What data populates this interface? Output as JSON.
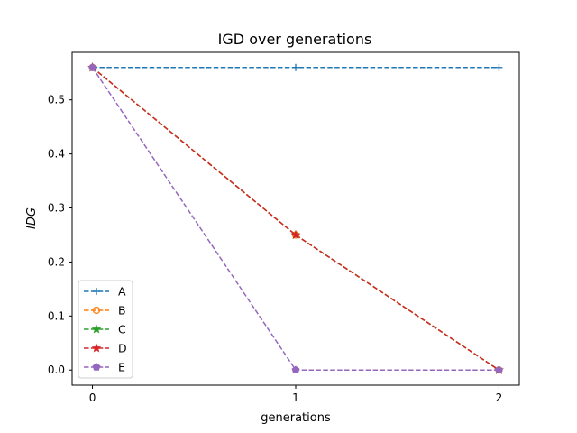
{
  "chart_data": {
    "type": "line",
    "title": "IGD over generations",
    "xlabel": "generations",
    "ylabel": "IDG",
    "x": [
      0,
      1,
      2
    ],
    "xlim": [
      -0.1,
      2.1
    ],
    "ylim": [
      -0.028,
      0.588
    ],
    "xticks": [
      "0",
      "1",
      "2"
    ],
    "yticks": [
      "0.0",
      "0.1",
      "0.2",
      "0.3",
      "0.4",
      "0.5"
    ],
    "grid": false,
    "legend_position": "lower-left",
    "series": [
      {
        "name": "A",
        "values": [
          0.56,
          0.56,
          0.56
        ],
        "color": "#1f77b4",
        "marker": "plus"
      },
      {
        "name": "B",
        "values": [
          0.56,
          0.25,
          0.0
        ],
        "color": "#ff7f0e",
        "marker": "circle"
      },
      {
        "name": "C",
        "values": [
          0.56,
          0.25,
          0.0
        ],
        "color": "#2ca02c",
        "marker": "star"
      },
      {
        "name": "D",
        "values": [
          0.56,
          0.25,
          0.0
        ],
        "color": "#d62728",
        "marker": "star"
      },
      {
        "name": "E",
        "values": [
          0.56,
          0.0,
          0.0
        ],
        "color": "#9467bd",
        "marker": "pentagon"
      }
    ]
  }
}
